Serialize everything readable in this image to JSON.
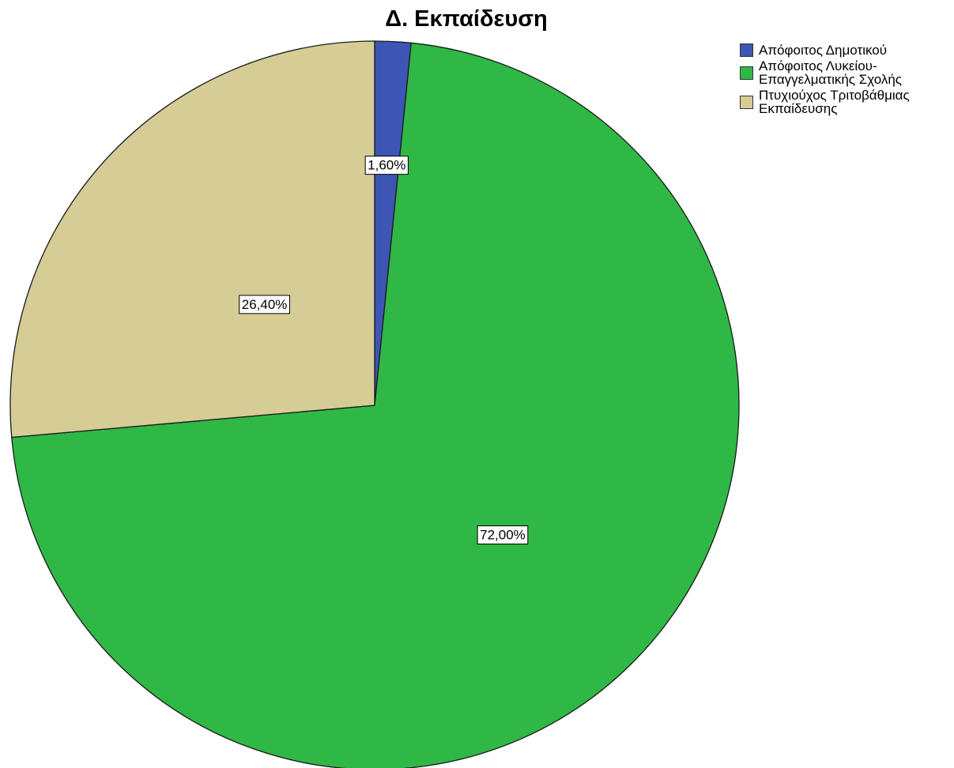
{
  "chart_data": {
    "type": "pie",
    "title": "Δ. Εκπαίδευση",
    "slices": [
      {
        "label": "Απόφοιτος Δημοτικού",
        "value": 1.6,
        "data_label": "1,60%",
        "color": "#3d55b5"
      },
      {
        "label": "Απόφοιτος Λυκείου-\nΕπαγγελματικής Σχολής",
        "value": 72.0,
        "data_label": "72,00%",
        "color": "#2fb845"
      },
      {
        "label": "Πτυχιούχος Τριτοβάθμιας\nΕκπαίδευσης",
        "value": 26.4,
        "data_label": "26,40%",
        "color": "#d5cc96"
      }
    ],
    "start_angle": "top",
    "direction": "clockwise",
    "legend_position": "top-right"
  }
}
